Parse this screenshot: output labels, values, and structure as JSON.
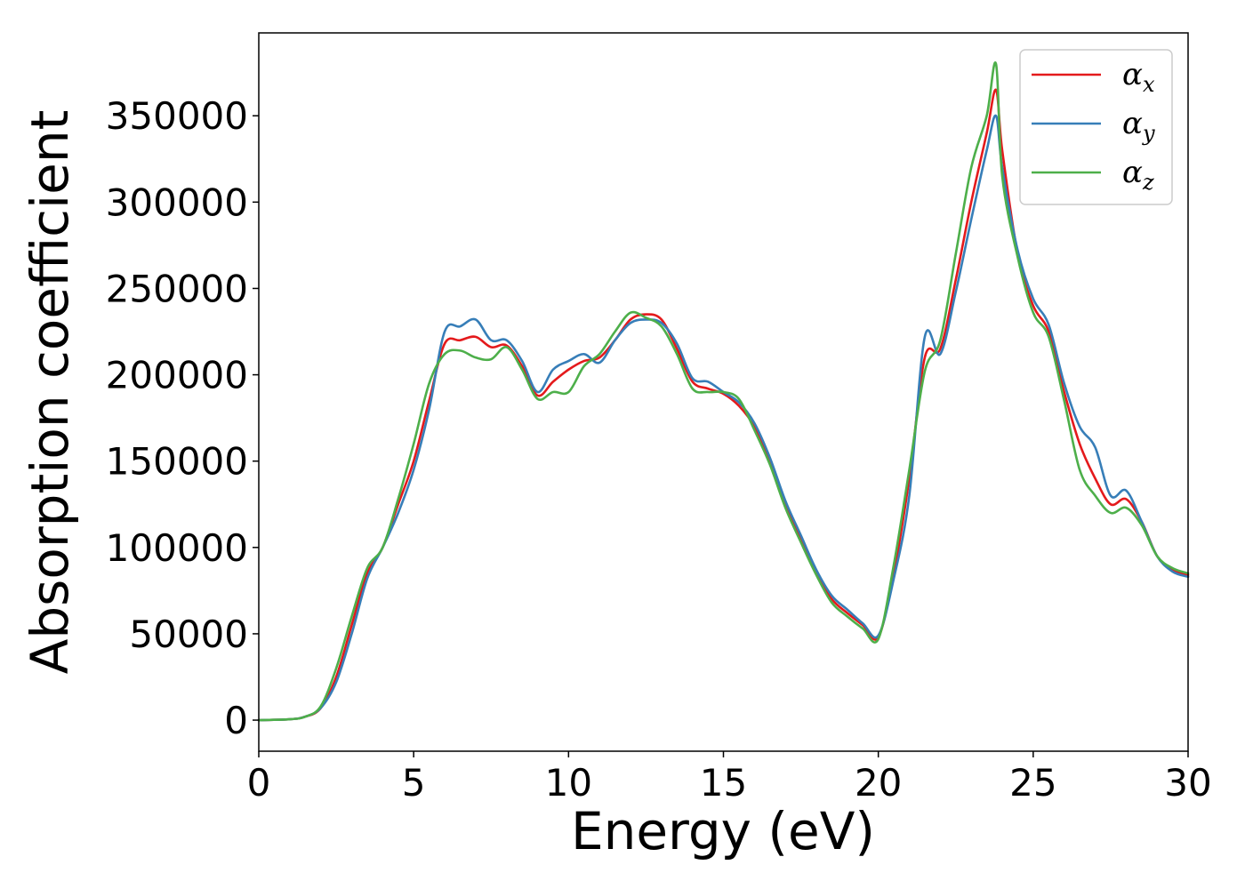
{
  "chart_data": {
    "type": "line",
    "xlabel": "Energy (eV)",
    "ylabel": "Absorption coefficient",
    "xlim": [
      0,
      30
    ],
    "ylim": [
      -18000,
      398000
    ],
    "xticks": [
      0,
      5,
      10,
      15,
      20,
      25,
      30
    ],
    "yticks": [
      0,
      50000,
      100000,
      150000,
      200000,
      250000,
      300000,
      350000
    ],
    "grid": false,
    "legend_position": "top-right",
    "x": [
      0,
      1,
      1.5,
      2,
      2.5,
      3,
      3.5,
      4,
      4.5,
      5,
      5.5,
      6,
      6.5,
      7,
      7.5,
      8,
      8.5,
      9,
      9.5,
      10,
      10.5,
      11,
      11.5,
      12,
      12.5,
      13,
      13.5,
      14,
      14.5,
      15,
      15.5,
      16,
      16.5,
      17,
      17.5,
      18,
      18.5,
      19,
      19.5,
      20,
      20.5,
      21,
      21.5,
      22,
      22.5,
      23,
      23.5,
      23.8,
      24,
      24.5,
      25,
      25.5,
      26,
      26.5,
      27,
      27.5,
      28,
      28.5,
      29,
      29.5,
      30
    ],
    "series": [
      {
        "name": "α",
        "subscript": "x",
        "color": "#e41a1c",
        "values": [
          0,
          500,
          2000,
          7000,
          25000,
          55000,
          85000,
          100000,
          125000,
          150000,
          185000,
          218000,
          220000,
          222000,
          216000,
          217000,
          205000,
          188000,
          196000,
          203000,
          208000,
          210000,
          220000,
          232000,
          235000,
          232000,
          215000,
          196000,
          192000,
          189000,
          182000,
          170000,
          150000,
          125000,
          105000,
          85000,
          70000,
          62000,
          55000,
          48000,
          85000,
          140000,
          210000,
          215000,
          255000,
          300000,
          340000,
          365000,
          330000,
          270000,
          240000,
          225000,
          190000,
          160000,
          140000,
          125000,
          128000,
          115000,
          95000,
          87000,
          84000
        ]
      },
      {
        "name": "α",
        "subscript": "y",
        "color": "#377eb8",
        "values": [
          0,
          500,
          2000,
          7000,
          22000,
          50000,
          82000,
          100000,
          120000,
          145000,
          180000,
          225000,
          228000,
          232000,
          220000,
          220000,
          208000,
          190000,
          203000,
          208000,
          212000,
          207000,
          220000,
          230000,
          232000,
          230000,
          218000,
          198000,
          196000,
          190000,
          184000,
          172000,
          152000,
          127000,
          107000,
          87000,
          72000,
          64000,
          56000,
          49000,
          82000,
          130000,
          222000,
          212000,
          248000,
          290000,
          330000,
          350000,
          320000,
          272000,
          244000,
          229000,
          195000,
          170000,
          158000,
          130000,
          133000,
          115000,
          95000,
          86000,
          83000
        ]
      },
      {
        "name": "α",
        "subscript": "z",
        "color": "#4daf4a",
        "values": [
          0,
          500,
          2000,
          8000,
          30000,
          60000,
          88000,
          100000,
          128000,
          160000,
          195000,
          212000,
          214000,
          210000,
          209000,
          216000,
          203000,
          186000,
          190000,
          190000,
          205000,
          212000,
          225000,
          236000,
          233000,
          228000,
          212000,
          192000,
          190000,
          190000,
          186000,
          168000,
          148000,
          123000,
          103000,
          84000,
          68000,
          60000,
          53000,
          47000,
          90000,
          145000,
          202000,
          220000,
          270000,
          320000,
          350000,
          380000,
          315000,
          268000,
          236000,
          222000,
          185000,
          145000,
          130000,
          120000,
          123000,
          113000,
          95000,
          88000,
          85000
        ]
      }
    ]
  }
}
